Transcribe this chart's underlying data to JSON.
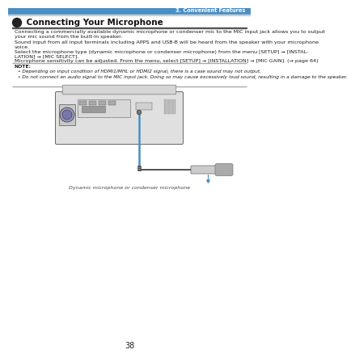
{
  "page_header_right": "3. Convenient Features",
  "section_number": "➇",
  "section_title": " Connecting Your Microphone",
  "body_text_1": "Connecting a commercially available dynamic microphone or condenser mic to the MIC input jack allows you to output\nyour mic sound from the built-in speaker.",
  "body_text_2": "Sound input from all input terminals including APPS and USB-B will be heard from the speaker with your microphone\nvoice.\nSelect the microphone type (dynamic microphone or condenser microphone) from the menu [SETUP] → [INSTAL-\nLATION] → [MIC SELECT].\nMicrophone sensitivity can be adjusted. From the menu, select [SETUP] → [INSTALLATION] → [MIC GAIN]. (→ page 64)",
  "note_label": "NOTE:",
  "note_bullet_1": "Depending on input condition of HDMI1/MHL or HDMI2 signal, there is a case sound may not output.",
  "note_bullet_2": "Do not connect an audio signal to the MIC input jack. Doing so may cause excessively loud sound, resulting in a damage to the speaker.",
  "diagram_caption": "Dynamic microphone or condenser microphone",
  "page_number": "38",
  "header_line_color": "#4a8fc4",
  "bg_color": "#ffffff",
  "text_color": "#1a1a1a",
  "note_line_color": "#aaaaaa"
}
